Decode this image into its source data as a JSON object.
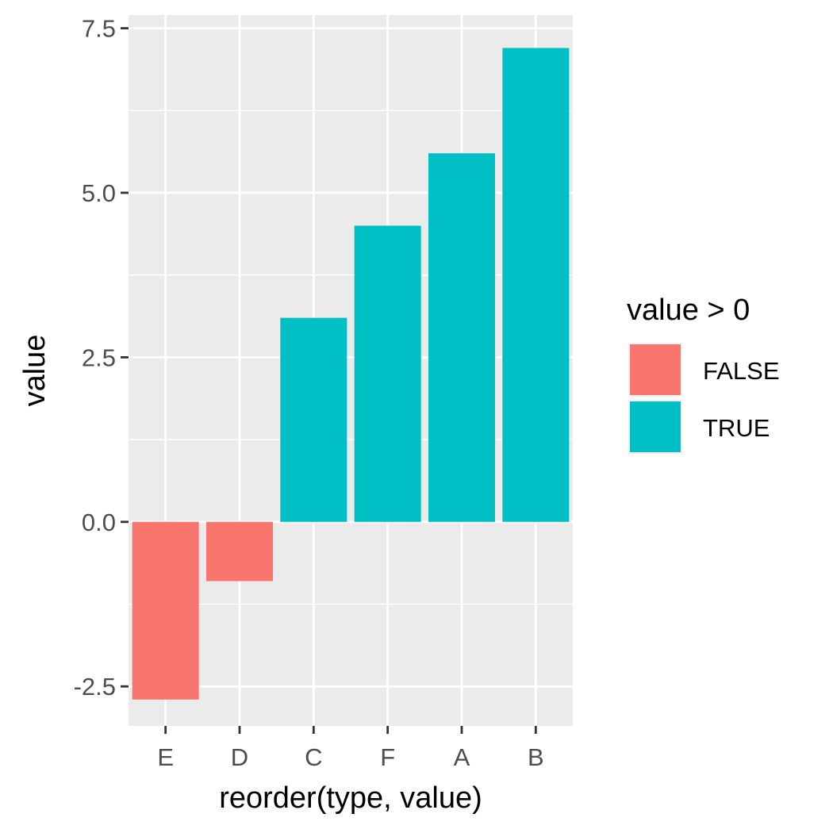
{
  "chart_data": {
    "type": "bar",
    "categories": [
      "E",
      "D",
      "C",
      "F",
      "A",
      "B"
    ],
    "values": [
      -2.7,
      -0.9,
      3.1,
      4.5,
      5.6,
      7.2
    ],
    "xlabel": "reorder(type, value)",
    "ylabel": "value",
    "ylim": [
      -3.1,
      7.7
    ],
    "yticks": [
      -2.5,
      0.0,
      2.5,
      5.0,
      7.5
    ],
    "ytick_labels": [
      "-2.5",
      "0.0",
      "2.5",
      "5.0",
      "7.5"
    ],
    "grid": true,
    "legend": {
      "title": "value > 0",
      "placement": "right",
      "entries": [
        {
          "label": "FALSE",
          "color": "#F8766D"
        },
        {
          "label": "TRUE",
          "color": "#00BFC4"
        }
      ]
    },
    "colors": {
      "panel_background": "#EBEBEB",
      "grid_line": "#FFFFFF",
      "negative": "#F8766D",
      "positive": "#00BFC4"
    }
  }
}
